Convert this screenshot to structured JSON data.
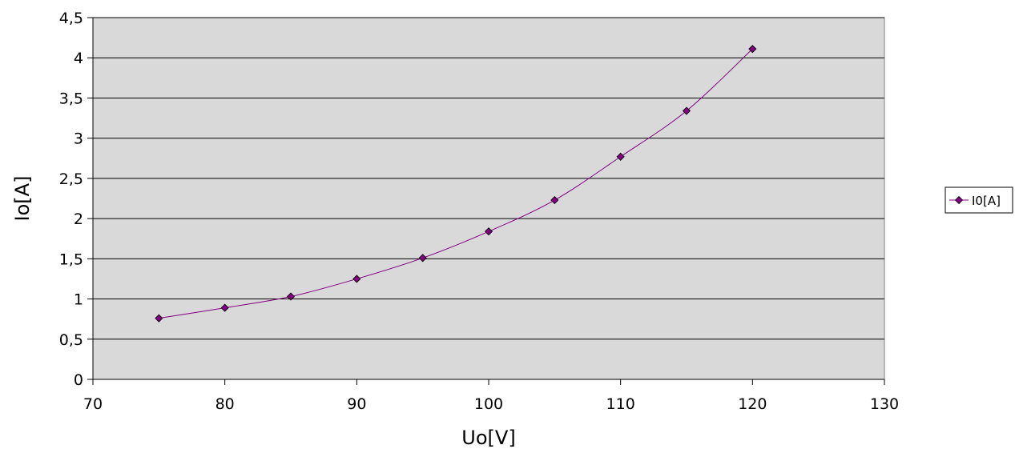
{
  "chart_data": {
    "type": "scatter",
    "title": "",
    "xlabel": "Uo[V]",
    "ylabel": "Io[A]",
    "xlim": [
      70,
      130
    ],
    "ylim": [
      0,
      4.5
    ],
    "x_ticks": [
      "70",
      "80",
      "90",
      "100",
      "110",
      "120",
      "130"
    ],
    "y_ticks": [
      "0",
      "0,5",
      "1",
      "1,5",
      "2",
      "2,5",
      "3",
      "3,5",
      "4",
      "4,5"
    ],
    "grid": "horizontal",
    "legend_position": "right",
    "series": [
      {
        "name": "I0[A]",
        "color": "#800080",
        "marker": "diamond",
        "x": [
          75,
          80,
          85,
          90,
          95,
          100,
          105,
          110,
          115,
          120
        ],
        "y": [
          0.76,
          0.89,
          1.03,
          1.25,
          1.51,
          1.84,
          2.23,
          2.77,
          3.34,
          4.11
        ]
      }
    ],
    "plot_background": "#d9d9d9",
    "gridline_color": "#000000"
  }
}
